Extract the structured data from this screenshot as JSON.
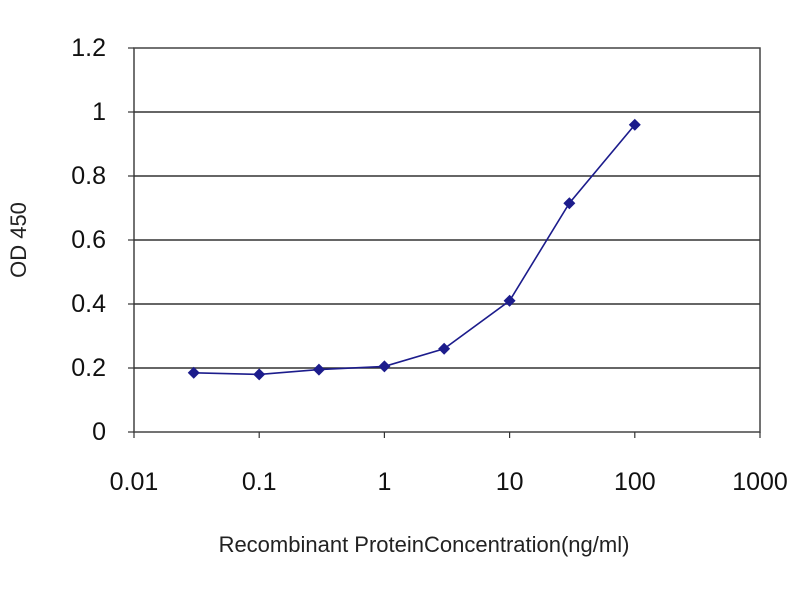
{
  "chart_data": {
    "type": "scatter",
    "title": "",
    "xlabel": "Recombinant ProteinConcentration(ng/ml)",
    "ylabel": "OD 450",
    "x_scale": "log",
    "xlim": [
      0.01,
      1000
    ],
    "ylim": [
      0,
      1.2
    ],
    "grid": "horizontal",
    "legend": "none",
    "x_ticks": [
      "0.01",
      "0.1",
      "1",
      "10",
      "100",
      "1000"
    ],
    "y_ticks": [
      "0",
      "0.2",
      "0.4",
      "0.6",
      "0.8",
      "1",
      "1.2"
    ],
    "series": [
      {
        "color": "#1c1c8c",
        "points": [
          {
            "x": 0.03,
            "y": 0.185
          },
          {
            "x": 0.1,
            "y": 0.18
          },
          {
            "x": 0.3,
            "y": 0.195
          },
          {
            "x": 1,
            "y": 0.205
          },
          {
            "x": 3,
            "y": 0.26
          },
          {
            "x": 10,
            "y": 0.41
          },
          {
            "x": 30,
            "y": 0.715
          },
          {
            "x": 100,
            "y": 0.96
          }
        ]
      }
    ]
  }
}
